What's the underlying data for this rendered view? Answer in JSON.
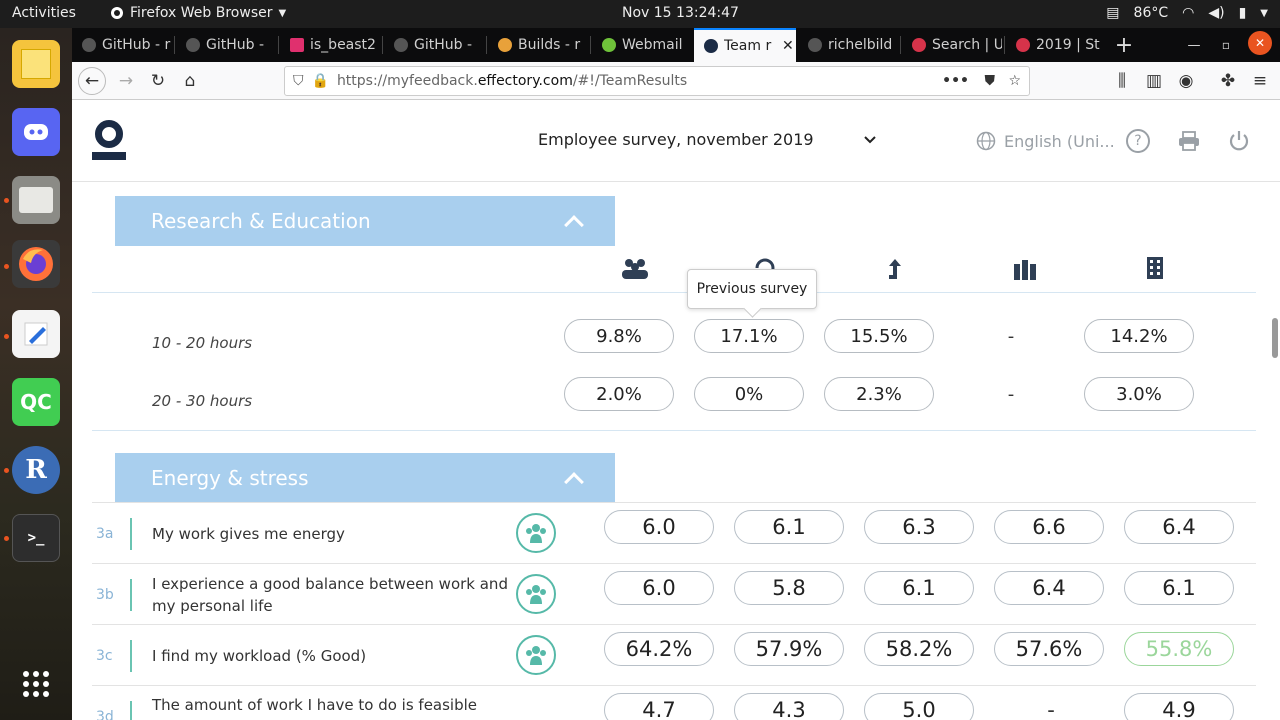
{
  "topbar": {
    "activities": "Activities",
    "app_name": "Firefox Web Browser",
    "clock": "Nov 15  13:24:47",
    "temperature": "86°C"
  },
  "dock": {
    "items": [
      "apps-grid-icon",
      "discord-icon",
      "files-icon",
      "firefox-icon",
      "text-editor-icon",
      "qt-creator-icon",
      "r-icon",
      "terminal-icon"
    ],
    "qc_label": "QC",
    "r_label": "R"
  },
  "browser": {
    "tabs": [
      {
        "label": "GitHub - r",
        "icon": "github-icon"
      },
      {
        "label": "GitHub - ",
        "icon": "github-icon"
      },
      {
        "label": "is_beast2",
        "icon": "pink-icon"
      },
      {
        "label": "GitHub - ",
        "icon": "github-icon"
      },
      {
        "label": "Builds - r",
        "icon": "builds-icon"
      },
      {
        "label": "Webmail",
        "icon": "webmail-icon"
      },
      {
        "label": "Team r",
        "icon": "effectory-icon"
      },
      {
        "label": "richelbild",
        "icon": "github-icon"
      },
      {
        "label": "Search | U",
        "icon": "search-tab-icon"
      },
      {
        "label": "2019 | St",
        "icon": "st-icon"
      }
    ],
    "url_prefix": "https://myfeedback.",
    "url_domain": "effectory.com",
    "url_suffix": "/#!/TeamResults",
    "accent": "#0a84ff"
  },
  "app": {
    "survey": "Employee survey, november 2019",
    "language": "English (Uni...",
    "tooltip": "Previous survey",
    "section1": {
      "title": "Research & Education",
      "rows": [
        {
          "label": "10 - 20 hours",
          "values": [
            "9.8%",
            "17.1%",
            "15.5%",
            "-",
            "14.2%"
          ]
        },
        {
          "label": "20 - 30 hours",
          "values": [
            "2.0%",
            "0%",
            "2.3%",
            "-",
            "3.0%"
          ]
        }
      ]
    },
    "section2": {
      "title": "Energy & stress",
      "questions": [
        {
          "num": "3a",
          "text": "My work gives me energy",
          "values": [
            "6.0",
            "6.1",
            "6.3",
            "6.6",
            "6.4"
          ]
        },
        {
          "num": "3b",
          "text": "I experience a good balance between work and my personal life",
          "values": [
            "6.0",
            "5.8",
            "6.1",
            "6.4",
            "6.1"
          ]
        },
        {
          "num": "3c",
          "text": "I find my workload (% Good)",
          "values": [
            "64.2%",
            "57.9%",
            "58.2%",
            "57.6%",
            "55.8%"
          ]
        },
        {
          "num": "3d",
          "text": "The amount of work I have to do is feasible within",
          "values": [
            "4.7",
            "4.3",
            "5.0",
            "-",
            "4.9"
          ]
        }
      ]
    },
    "colors": {
      "section_header": "#a9cfee",
      "positive": "#9bd69b",
      "teal": "#56b9a8"
    }
  }
}
